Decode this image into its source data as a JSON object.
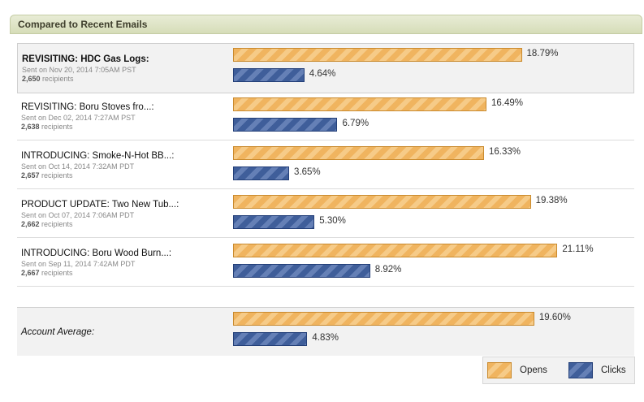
{
  "header": {
    "title": "Compared to Recent Emails"
  },
  "campaigns": [
    {
      "name": "REVISITING: HDC Gas Logs:",
      "sent": "Sent on Nov 20, 2014 7:05AM PST",
      "recipients": "2,650",
      "opens": 18.79,
      "clicks": 4.64,
      "opens_label": "18.79%",
      "clicks_label": "4.64%"
    },
    {
      "name": "REVISITING: Boru Stoves fro...:",
      "sent": "Sent on Dec 02, 2014 7:27AM PST",
      "recipients": "2,638",
      "opens": 16.49,
      "clicks": 6.79,
      "opens_label": "16.49%",
      "clicks_label": "6.79%"
    },
    {
      "name": "INTRODUCING: Smoke-N-Hot BB...:",
      "sent": "Sent on Oct 14, 2014 7:32AM PDT",
      "recipients": "2,657",
      "opens": 16.33,
      "clicks": 3.65,
      "opens_label": "16.33%",
      "clicks_label": "3.65%"
    },
    {
      "name": "PRODUCT UPDATE: Two New Tub...:",
      "sent": "Sent on Oct 07, 2014 7:06AM PDT",
      "recipients": "2,662",
      "opens": 19.38,
      "clicks": 5.3,
      "opens_label": "19.38%",
      "clicks_label": "5.30%"
    },
    {
      "name": "INTRODUCING: Boru Wood Burn...:",
      "sent": "Sent on Sep 11, 2014 7:42AM PDT",
      "recipients": "2,667",
      "opens": 21.11,
      "clicks": 8.92,
      "opens_label": "21.11%",
      "clicks_label": "8.92%"
    }
  ],
  "recipients_suffix": "recipients",
  "average": {
    "label": "Account Average:",
    "opens": 19.6,
    "clicks": 4.83,
    "opens_label": "19.60%",
    "clicks_label": "4.83%"
  },
  "legend": {
    "opens": "Opens",
    "clicks": "Clicks"
  },
  "colors": {
    "opens": "#f0b45f",
    "clicks": "#3f5e9a"
  },
  "chart_data": {
    "type": "bar",
    "orientation": "horizontal",
    "categories": [
      "REVISITING: HDC Gas Logs:",
      "REVISITING: Boru Stoves fro...:",
      "INTRODUCING: Smoke-N-Hot BB...:",
      "PRODUCT UPDATE: Two New Tub...:",
      "INTRODUCING: Boru Wood Burn...:",
      "Account Average:"
    ],
    "series": [
      {
        "name": "Opens",
        "values": [
          18.79,
          16.49,
          16.33,
          19.38,
          21.11,
          19.6
        ]
      },
      {
        "name": "Clicks",
        "values": [
          4.64,
          6.79,
          3.65,
          5.3,
          8.92,
          4.83
        ]
      }
    ],
    "title": "Compared to Recent Emails",
    "legend_position": "bottom-right"
  }
}
